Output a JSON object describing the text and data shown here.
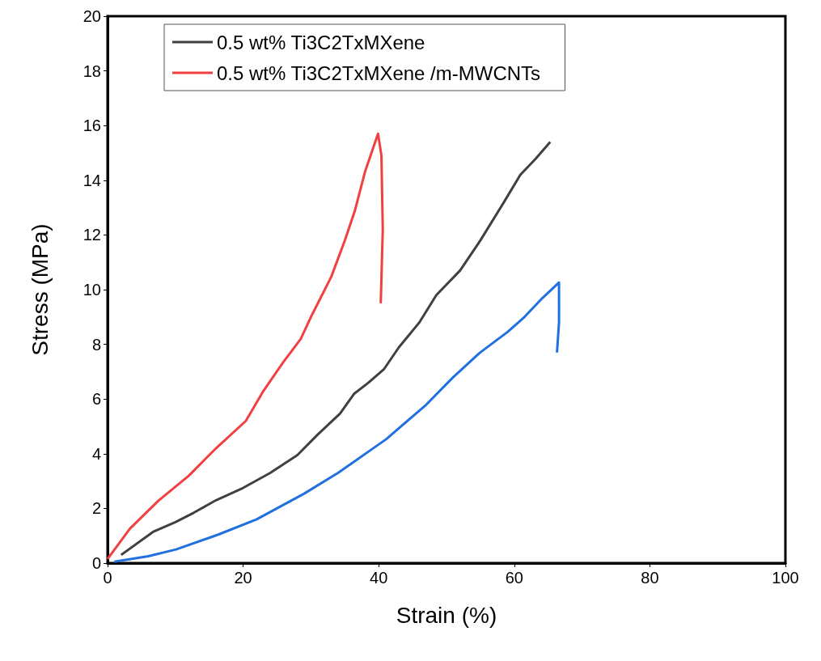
{
  "chart_data": {
    "type": "line",
    "xlabel": "Strain (%)",
    "ylabel": "Stress (MPa)",
    "xlim": [
      0,
      100
    ],
    "xticks": [
      0,
      20,
      40,
      60,
      80,
      100
    ],
    "ylim": [
      0,
      20
    ],
    "yticks": [
      0,
      2,
      4,
      6,
      8,
      10,
      12,
      14,
      16,
      18,
      20
    ],
    "grid": false,
    "legend": "top",
    "marker": "none",
    "line_style": "solid",
    "series": [
      {
        "name": "0.5 wt% Ti3C2TxMXene",
        "color": "#404040",
        "x": [
          2,
          6.7,
          10,
          12.7,
          16,
          20,
          24,
          28,
          31,
          34.3,
          36.4,
          38.5,
          40.8,
          43,
          46,
          48.5,
          52,
          55,
          58.6,
          60.9,
          63.1,
          65.3
        ],
        "values": [
          0.3,
          1.14,
          1.5,
          1.84,
          2.3,
          2.75,
          3.3,
          3.95,
          4.7,
          5.47,
          6.2,
          6.6,
          7.1,
          7.9,
          8.8,
          9.8,
          10.7,
          11.8,
          13.25,
          14.2,
          14.77,
          15.4
        ]
      },
      {
        "name": "0.5 wt% Ti3C2TxMXene /m-MWCNTs",
        "color": "#f04040",
        "x": [
          0,
          3.3,
          7.5,
          12,
          16,
          20.4,
          23,
          25.9,
          28.5,
          30,
          33,
          35,
          36.5,
          38,
          39.9,
          40.4,
          40.6,
          40.3
        ],
        "values": [
          0.15,
          1.26,
          2.28,
          3.2,
          4.2,
          5.2,
          6.3,
          7.34,
          8.2,
          9,
          10.47,
          11.8,
          12.9,
          14.33,
          15.7,
          14.9,
          12.2,
          9.5
        ]
      },
      {
        "color": "#2070e0",
        "x": [
          1,
          6,
          10.1,
          16.4,
          22,
          29,
          34,
          41.1,
          47,
          51,
          54.9,
          59,
          61.5,
          64.1,
          66.6,
          66.6,
          66.3
        ],
        "values": [
          0.05,
          0.25,
          0.5,
          1.05,
          1.6,
          2.54,
          3.3,
          4.53,
          5.79,
          6.8,
          7.69,
          8.45,
          9,
          9.68,
          10.26,
          8.8,
          7.7
        ]
      }
    ]
  }
}
